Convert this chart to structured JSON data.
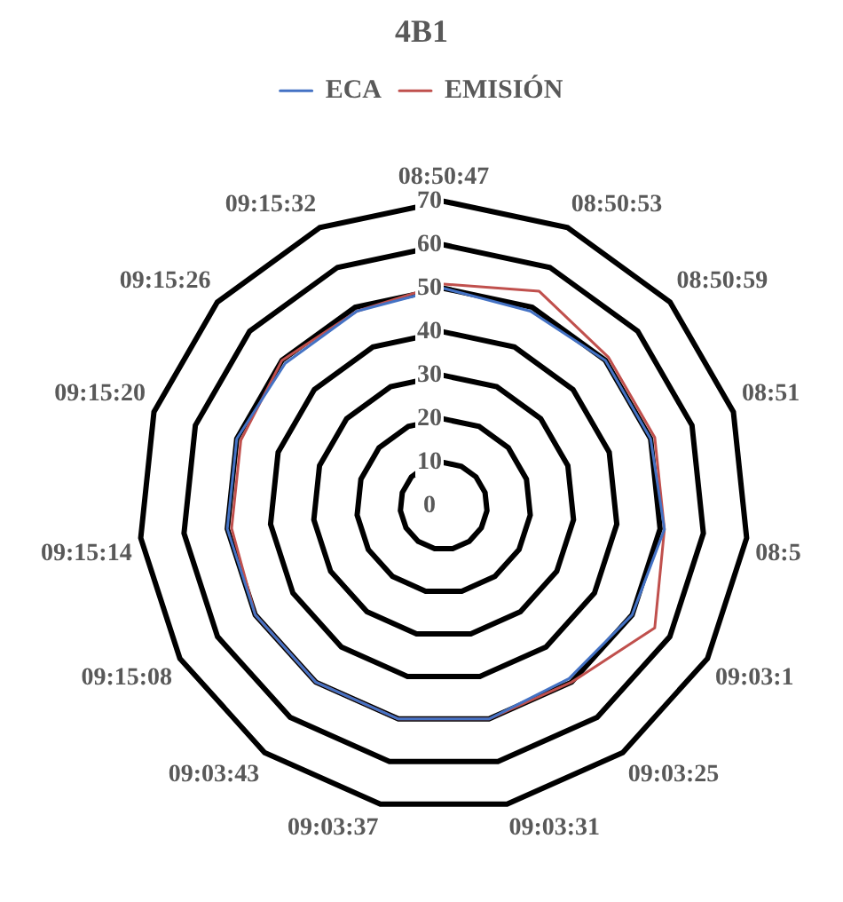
{
  "chart_data": {
    "type": "radar",
    "title": "4B1",
    "categories": [
      "08:50:47",
      "08:50:53",
      "08:50:59",
      "08:51",
      "08:5",
      "09:03:1",
      "09:03:25",
      "09:03:31",
      "09:03:37",
      "09:03:43",
      "09:15:08",
      "09:15:14",
      "09:15:20",
      "09:15:26",
      "09:15:32"
    ],
    "series": [
      {
        "name": "ECA",
        "color": "#4472c4",
        "values": [
          50,
          49,
          50,
          50,
          51,
          50,
          49,
          50,
          50,
          50,
          50,
          50,
          50,
          49,
          49
        ]
      },
      {
        "name": "EMISIÓN",
        "color": "#c0504d",
        "values": [
          51,
          54,
          51,
          51,
          51,
          56,
          50,
          50,
          50,
          50,
          50,
          49,
          49,
          50,
          49
        ]
      }
    ],
    "ylim": [
      0,
      70
    ],
    "yticks": [
      0,
      10,
      20,
      30,
      40,
      50,
      60,
      70
    ],
    "legend": "top",
    "grid": true
  }
}
